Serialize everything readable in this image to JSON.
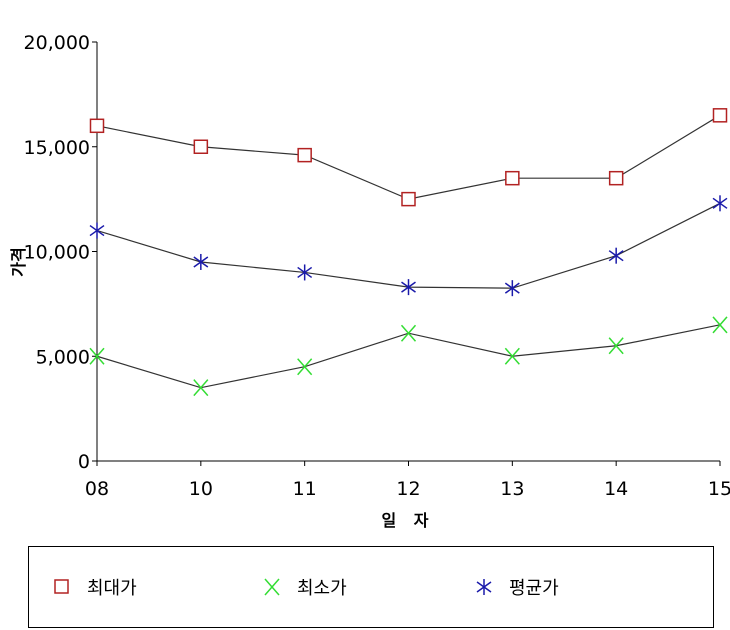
{
  "chart_data": {
    "type": "line",
    "categories": [
      "08",
      "10",
      "11",
      "12",
      "13",
      "14",
      "15"
    ],
    "series": [
      {
        "name": "최대가",
        "values": [
          16000,
          15000,
          14600,
          12500,
          13500,
          13500,
          16500
        ],
        "color": "#b22222",
        "marker": "square"
      },
      {
        "name": "최소가",
        "values": [
          5000,
          3500,
          4500,
          6100,
          5000,
          5500,
          6500
        ],
        "color": "#33dd33",
        "marker": "x"
      },
      {
        "name": "평균가",
        "values": [
          11000,
          9500,
          9000,
          8300,
          8250,
          9800,
          12300
        ],
        "color": "#1a1aaa",
        "marker": "asterisk"
      }
    ],
    "line_color": "#333333",
    "xlabel": "일 자",
    "ylabel": "가격",
    "ylim": [
      0,
      20000
    ],
    "yticks": [
      "0",
      "5,000",
      "10,000",
      "15,000",
      "20,000"
    ],
    "grid": false,
    "legend_position": "bottom"
  }
}
